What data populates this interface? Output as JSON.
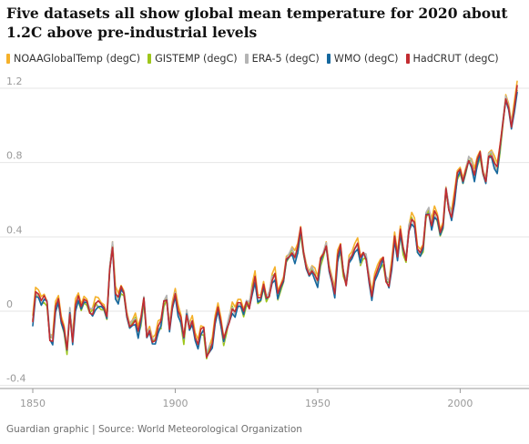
{
  "title": "Five datasets all show global mean temperature for 2020 about 1.2C above pre-industrial levels",
  "source": "Guardian graphic | Source: World Meteorological Organization",
  "chart_data": {
    "type": "line",
    "title": "Five datasets all show global mean temperature for 2020 about 1.2C above pre-industrial levels",
    "xlabel": "",
    "ylabel": "",
    "xlim": [
      1850,
      2020
    ],
    "ylim": [
      -0.4,
      1.3
    ],
    "x_ticks": [
      1850,
      1900,
      1950,
      2000
    ],
    "x_tick_labels": [
      "1850",
      "1900",
      "1950",
      "2000"
    ],
    "y_ticks": [
      1.2,
      0.8,
      0.4,
      0,
      -0.4
    ],
    "y_tick_labels": [
      "1.2",
      "0.8",
      "0.4",
      "0",
      "-0.4"
    ],
    "grid": "horizontal",
    "legend_position": "top",
    "base_series": {
      "start_year": 1850,
      "values": [
        -0.05,
        0.1,
        0.09,
        0.05,
        0.07,
        0.05,
        -0.14,
        -0.15,
        0.02,
        0.06,
        -0.05,
        -0.1,
        -0.21,
        0.0,
        -0.15,
        0.03,
        0.07,
        0.02,
        0.06,
        0.05,
        0.0,
        0.0,
        0.04,
        0.04,
        0.03,
        0.02,
        -0.03,
        0.23,
        0.36,
        0.1,
        0.06,
        0.12,
        0.1,
        -0.02,
        -0.08,
        -0.06,
        -0.04,
        -0.12,
        -0.05,
        0.07,
        -0.13,
        -0.1,
        -0.16,
        -0.15,
        -0.09,
        -0.07,
        0.05,
        0.07,
        -0.09,
        0.03,
        0.1,
        0.0,
        -0.05,
        -0.15,
        -0.01,
        -0.08,
        -0.05,
        -0.14,
        -0.18,
        -0.11,
        -0.1,
        -0.24,
        -0.2,
        -0.17,
        -0.05,
        0.02,
        -0.06,
        -0.16,
        -0.1,
        -0.04,
        0.02,
        -0.01,
        0.04,
        0.04,
        -0.01,
        0.05,
        0.03,
        0.12,
        0.18,
        0.06,
        0.07,
        0.14,
        0.07,
        0.09,
        0.18,
        0.2,
        0.08,
        0.13,
        0.17,
        0.28,
        0.3,
        0.33,
        0.29,
        0.33,
        0.44,
        0.32,
        0.24,
        0.2,
        0.23,
        0.2,
        0.15,
        0.27,
        0.31,
        0.36,
        0.23,
        0.17,
        0.1,
        0.29,
        0.34,
        0.21,
        0.15,
        0.28,
        0.3,
        0.34,
        0.36,
        0.27,
        0.31,
        0.29,
        0.18,
        0.08,
        0.18,
        0.22,
        0.25,
        0.28,
        0.17,
        0.15,
        0.25,
        0.4,
        0.29,
        0.43,
        0.33,
        0.28,
        0.45,
        0.5,
        0.47,
        0.33,
        0.31,
        0.34,
        0.52,
        0.54,
        0.47,
        0.53,
        0.5,
        0.42,
        0.46,
        0.66,
        0.56,
        0.52,
        0.61,
        0.73,
        0.76,
        0.7,
        0.76,
        0.82,
        0.8,
        0.73,
        0.8,
        0.85,
        0.75,
        0.7,
        0.84,
        0.85,
        0.8,
        0.76,
        0.88,
        1.02,
        1.15,
        1.1,
        1.0,
        1.1,
        1.2
      ]
    },
    "series": [
      {
        "name": "NOAAGlobalTemp (degC)",
        "color": "#f5b12a",
        "offset": 0.02,
        "wiggle_phase": 0.0
      },
      {
        "name": "GISTEMP (degC)",
        "color": "#9ec61b",
        "offset": -0.01,
        "wiggle_phase": 1.3
      },
      {
        "name": "ERA-5 (degC)",
        "color": "#b4b4b4",
        "offset": 0.0,
        "wiggle_phase": 2.6
      },
      {
        "name": "WMO (degC)",
        "color": "#15689e",
        "offset": -0.015,
        "wiggle_phase": 3.9
      },
      {
        "name": "HadCRUT (degC)",
        "color": "#c22c31",
        "offset": 0.0,
        "wiggle_phase": 5.2
      }
    ]
  }
}
